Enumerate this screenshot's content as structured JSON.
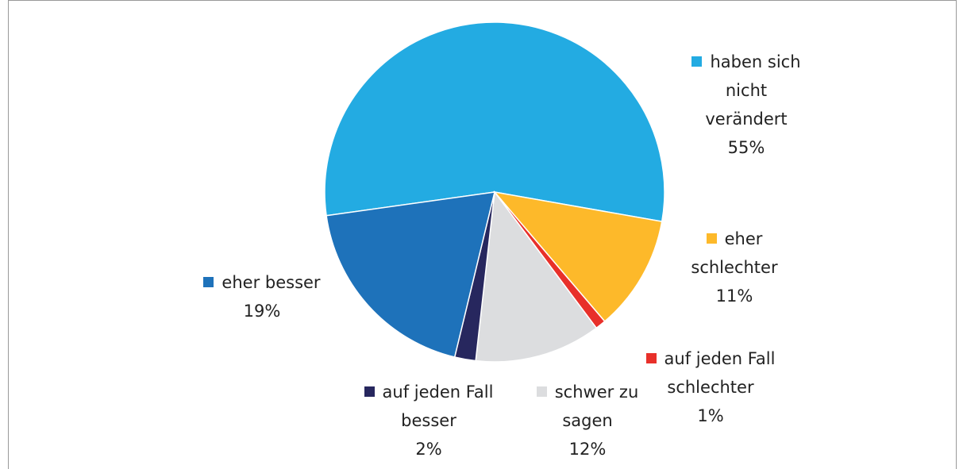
{
  "chart_data": {
    "type": "pie",
    "categories": [
      "haben sich nicht verändert",
      "eher schlechter",
      "auf jeden Fall schlechter",
      "schwer zu sagen",
      "auf jeden Fall besser",
      "eher besser"
    ],
    "values": [
      55,
      11,
      1,
      12,
      2,
      19
    ],
    "value_labels": [
      "55%",
      "11%",
      "1%",
      "12%",
      "2%",
      "19%"
    ],
    "colors": [
      "#23abe2",
      "#fdb92a",
      "#e8302a",
      "#dcdddf",
      "#27275e",
      "#1e72ba"
    ]
  }
}
